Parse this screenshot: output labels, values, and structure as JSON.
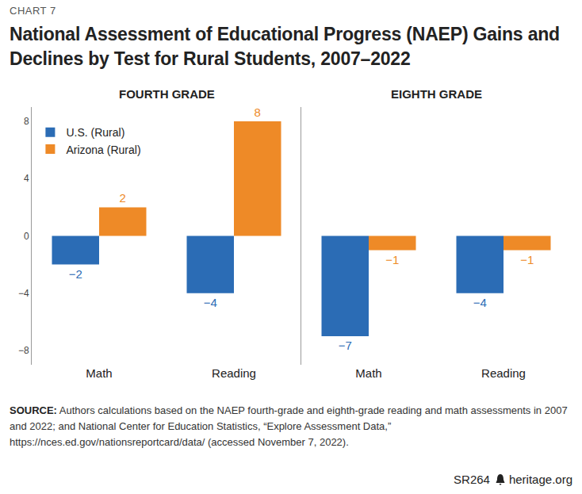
{
  "chart_data": [
    {
      "type": "bar",
      "title": "FOURTH GRADE",
      "categories": [
        "Math",
        "Reading"
      ],
      "series": [
        {
          "name": "U.S. (Rural)",
          "color": "#2b6cb5",
          "values": [
            -2,
            -4
          ],
          "value_labels": [
            "−2",
            "−4"
          ]
        },
        {
          "name": "Arizona (Rural)",
          "color": "#ee8a27",
          "values": [
            2,
            8
          ],
          "value_labels": [
            "2",
            "8"
          ]
        }
      ],
      "ylim": [
        -9,
        9
      ],
      "yticks": [
        {
          "value": -8,
          "label": "−8"
        },
        {
          "value": -4,
          "label": "−4"
        },
        0,
        4,
        8
      ],
      "grid": false,
      "data_labels": true,
      "legend": "upper left"
    },
    {
      "type": "bar",
      "title": "EIGHTH GRADE",
      "categories": [
        "Math",
        "Reading"
      ],
      "series": [
        {
          "name": "U.S. (Rural)",
          "color": "#2b6cb5",
          "values": [
            -7,
            -4
          ],
          "value_labels": [
            "−7",
            "−4"
          ]
        },
        {
          "name": "Arizona (Rural)",
          "color": "#ee8a27",
          "values": [
            -1,
            -1
          ],
          "value_labels": [
            "−1",
            "−1"
          ]
        }
      ],
      "ylim": [
        -9,
        9
      ],
      "yticks": [
        {
          "value": -8,
          "label": "−8"
        },
        {
          "value": -4,
          "label": "−4"
        },
        0,
        4,
        8
      ],
      "grid": false,
      "data_labels": true,
      "tick_labels": "x"
    }
  ],
  "figure": {
    "label": "CHART 7",
    "title": "National Assessment of Educational Progress (NAEP) Gains and Declines by Test for Rural Students, 2007–2022",
    "source": {
      "label": "SOURCE:",
      "text": "Authors calculations based on the NAEP fourth-grade and eighth-grade reading and math assessments in 2007 and 2022; and National Center for Education Statistics, “Explore Assessment Data,” https://nces.ed.gov/nationsreportcard/data/ (accessed November 7, 2022)."
    },
    "footer": {
      "report": "SR264",
      "site": "heritage.org"
    }
  }
}
